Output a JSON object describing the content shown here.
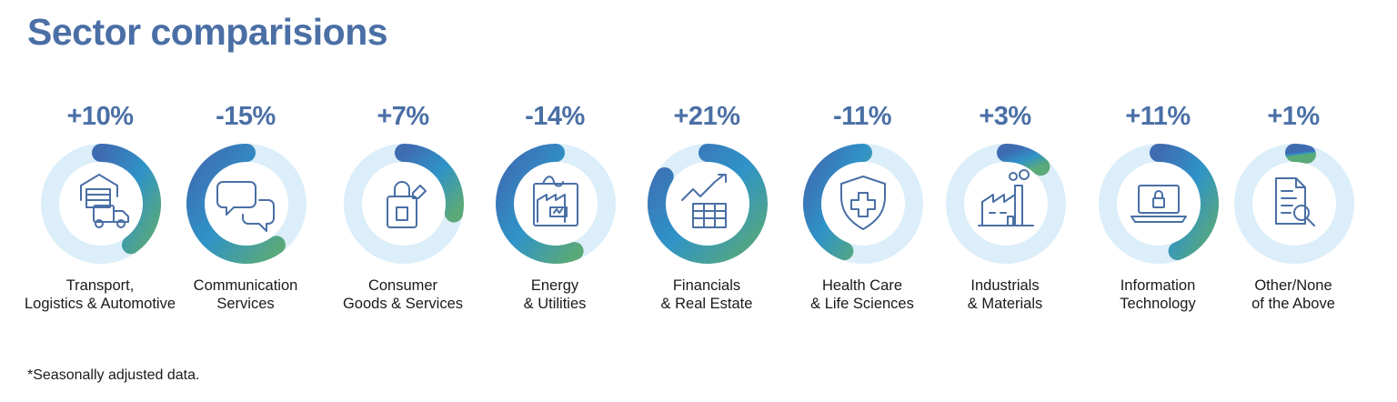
{
  "title": "Sector comparisions",
  "footnote": "*Seasonally adjusted data.",
  "colors": {
    "title": "#4a6fa5",
    "track": "#dbeef9",
    "gradient_start": "#3f6bb1",
    "gradient_mid": "#2f93c8",
    "gradient_end": "#5aa978",
    "icon": "#4a6fa5"
  },
  "chart_data": {
    "type": "donut",
    "title": "Sector comparisions",
    "unit": "%",
    "categories": [
      "Transport, Logistics & Automotive",
      "Communication Services",
      "Consumer Goods & Services",
      "Energy & Utilities",
      "Financials & Real Estate",
      "Health Care & Life Sciences",
      "Industrials & Materials",
      "Information Technology",
      "Other/None of the Above"
    ],
    "values": [
      10,
      -15,
      7,
      -14,
      21,
      -11,
      3,
      11,
      1
    ],
    "sectors": [
      {
        "value_label": "+10%",
        "value": 10,
        "label_lines": [
          "Transport,",
          "Logistics & Automotive"
        ],
        "icon": "warehouse-truck-icon"
      },
      {
        "value_label": "-15%",
        "value": -15,
        "label_lines": [
          "Communication",
          "Services"
        ],
        "icon": "chat-bubbles-icon"
      },
      {
        "value_label": "+7%",
        "value": 7,
        "label_lines": [
          "Consumer",
          "Goods & Services"
        ],
        "icon": "shopping-bag-icon"
      },
      {
        "value_label": "-14%",
        "value": -14,
        "label_lines": [
          "Energy",
          "& Utilities"
        ],
        "icon": "factory-battery-icon"
      },
      {
        "value_label": "+21%",
        "value": 21,
        "label_lines": [
          "Financials",
          "& Real Estate"
        ],
        "icon": "growth-chart-building-icon"
      },
      {
        "value_label": "-11%",
        "value": -11,
        "label_lines": [
          "Health Care",
          "& Life Sciences"
        ],
        "icon": "medical-shield-icon"
      },
      {
        "value_label": "+3%",
        "value": 3,
        "label_lines": [
          "Industrials",
          "& Materials"
        ],
        "icon": "factory-icon"
      },
      {
        "value_label": "+11%",
        "value": 11,
        "label_lines": [
          "Information",
          "Technology"
        ],
        "icon": "laptop-lock-icon"
      },
      {
        "value_label": "+1%",
        "value": 1,
        "label_lines": [
          "Other/None",
          "of the Above"
        ],
        "icon": "document-search-icon"
      }
    ]
  }
}
